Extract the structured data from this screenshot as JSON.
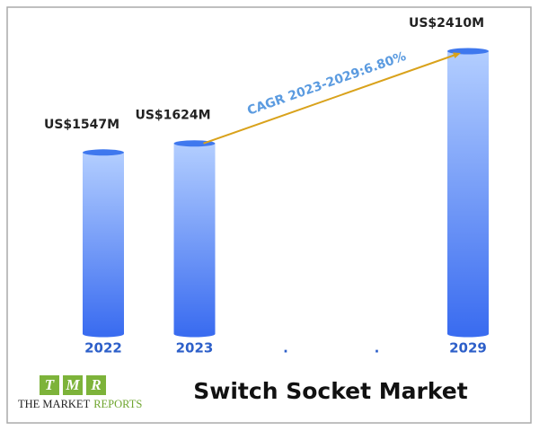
{
  "chart_data": {
    "type": "bar",
    "title": "Switch Socket Market",
    "categories": [
      "2022",
      "2023",
      ".",
      ".",
      "2029"
    ],
    "values": [
      1547,
      1624,
      null,
      null,
      2410
    ],
    "value_labels": [
      "US$1547M",
      "US$1624M",
      null,
      null,
      "US$2410M"
    ],
    "gradient": [
      "#b3ceff",
      "#3a6cf0"
    ],
    "annotation": "CAGR 2023-2029:6.80%",
    "annotation_color": "#d9a21b"
  },
  "logo": {
    "letters": [
      "T",
      "M",
      "R"
    ],
    "name": [
      "THE MARKET",
      "REPORTS"
    ]
  }
}
